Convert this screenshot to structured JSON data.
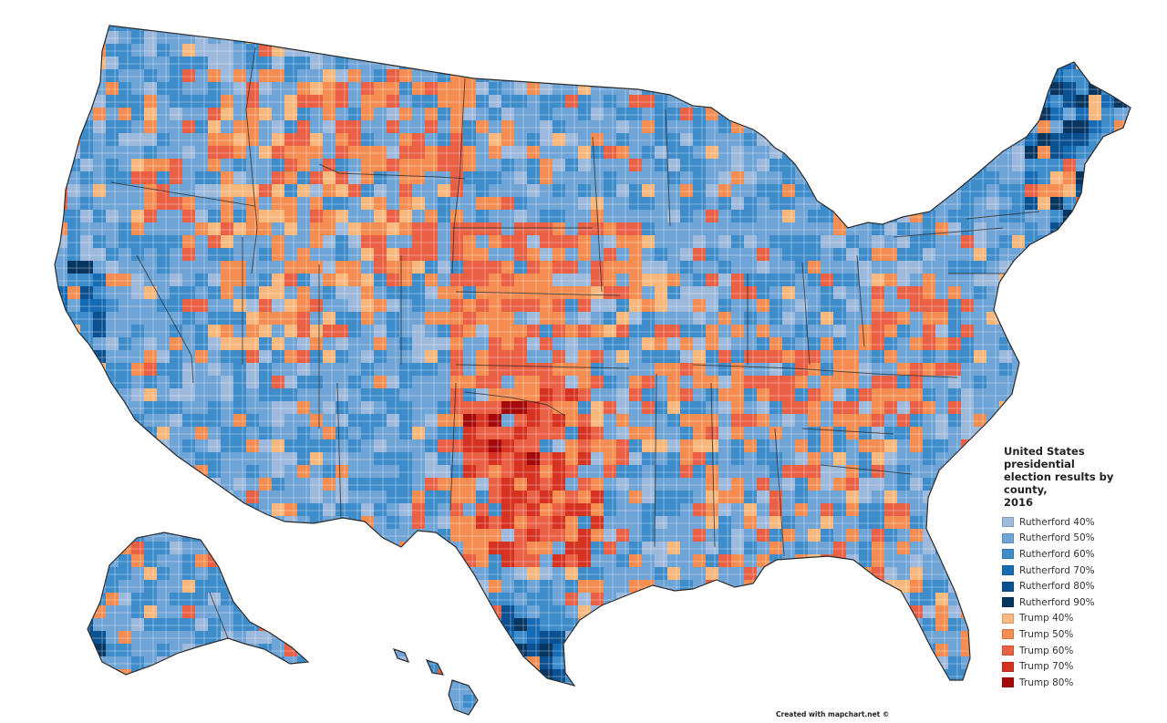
{
  "legend": {
    "title_lines": [
      "United States presidential",
      "election results by county,",
      "2016"
    ],
    "items": [
      {
        "label": "Rutherford 40%",
        "color": "#9db9dc"
      },
      {
        "label": "Rutherford 50%",
        "color": "#6ea4d6"
      },
      {
        "label": "Rutherford 60%",
        "color": "#3f8ccb"
      },
      {
        "label": "Rutherford 70%",
        "color": "#176bb5"
      },
      {
        "label": "Rutherford 80%",
        "color": "#0b5192"
      },
      {
        "label": "Rutherford 90%",
        "color": "#063560"
      },
      {
        "label": "Trump 40%",
        "color": "#f8b77c"
      },
      {
        "label": "Trump 50%",
        "color": "#f58d52"
      },
      {
        "label": "Trump 60%",
        "color": "#ea6044"
      },
      {
        "label": "Trump 70%",
        "color": "#d63222"
      },
      {
        "label": "Trump 80%",
        "color": "#a50a0a"
      }
    ]
  },
  "credit": "Created with mapchart.net ©",
  "colors": {
    "border": "#2b2b2b",
    "county_line": "#ffffff",
    "background": "#ffffff"
  }
}
